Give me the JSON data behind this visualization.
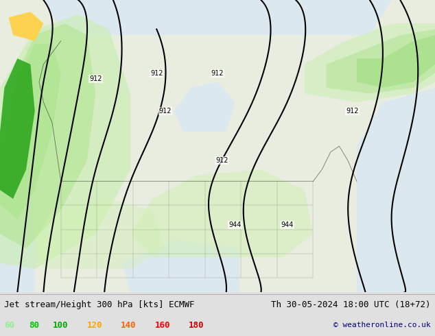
{
  "title_left": "Jet stream/Height 300 hPa [kts] ECMWF",
  "title_right": "Th 30-05-2024 18:00 UTC (18+72)",
  "copyright": "© weatheronline.co.uk",
  "legend_values": [
    "60",
    "80",
    "100",
    "120",
    "140",
    "160",
    "180"
  ],
  "legend_colors": [
    "#90ee90",
    "#00c800",
    "#00aa00",
    "#ffa500",
    "#ff6400",
    "#ff0000",
    "#c80000"
  ],
  "bg_color": "#e8e8e8",
  "map_bg": "#f0f0f0",
  "figsize": [
    6.34,
    4.9
  ],
  "dpi": 100,
  "contour_color": "#000000",
  "land_light": "#d0e8c0",
  "land_green_light": "#b8e0a0",
  "land_green_mid": "#80cc60",
  "land_green_dark": "#40a030",
  "land_green_bright": "#00cc00",
  "ocean_color": "#ddeeff",
  "gray_color": "#c0c0c0"
}
